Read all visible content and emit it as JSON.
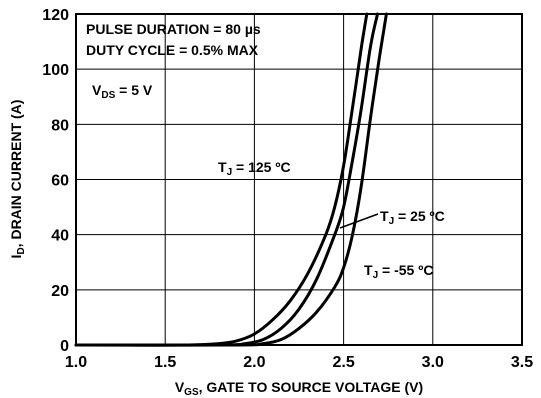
{
  "chart_data": {
    "type": "line",
    "xlabel": {
      "pre": "V",
      "sub": "GS",
      "post": ", GATE TO SOURCE VOLTAGE (V)"
    },
    "ylabel": {
      "pre": "I",
      "sub": "D",
      "post": ", DRAIN CURRENT (A)"
    },
    "xlim": [
      1.0,
      3.5
    ],
    "ylim": [
      0,
      120
    ],
    "x_ticks": [
      "1.0",
      "1.5",
      "2.0",
      "2.5",
      "3.0",
      "3.5"
    ],
    "y_ticks": [
      "0",
      "20",
      "40",
      "60",
      "80",
      "100",
      "120"
    ],
    "grid": true,
    "notes": {
      "pulse": "PULSE DURATION = 80 µs",
      "duty": "DUTY CYCLE = 0.5% MAX",
      "vds": {
        "pre": "V",
        "sub": "DS",
        "post": " = 5 V"
      }
    },
    "series": [
      {
        "name": {
          "pre": "T",
          "sub": "J",
          "post": " = 125 ºC"
        },
        "x": [
          1.0,
          1.6,
          1.8,
          1.9,
          2.0,
          2.1,
          2.2,
          2.3,
          2.4,
          2.45,
          2.5,
          2.55,
          2.6,
          2.63
        ],
        "y": [
          0,
          0,
          0.5,
          1.5,
          4,
          9,
          16,
          26,
          40,
          50,
          65,
          86,
          108,
          120
        ]
      },
      {
        "name": {
          "pre": "T",
          "sub": "J",
          "post": " = 25 ºC"
        },
        "x": [
          1.0,
          1.8,
          1.95,
          2.05,
          2.15,
          2.25,
          2.35,
          2.45,
          2.5,
          2.55,
          2.6,
          2.65,
          2.69
        ],
        "y": [
          0,
          0,
          0.5,
          2,
          6,
          13,
          24,
          40,
          50,
          67,
          86,
          108,
          120
        ]
      },
      {
        "name": {
          "pre": "T",
          "sub": "J",
          "post": " = -55 ºC"
        },
        "x": [
          1.0,
          1.9,
          2.05,
          2.15,
          2.25,
          2.35,
          2.45,
          2.5,
          2.55,
          2.6,
          2.65,
          2.7,
          2.74
        ],
        "y": [
          0,
          0,
          0.5,
          2,
          6,
          12,
          21,
          28,
          40,
          58,
          82,
          104,
          120
        ]
      }
    ]
  }
}
